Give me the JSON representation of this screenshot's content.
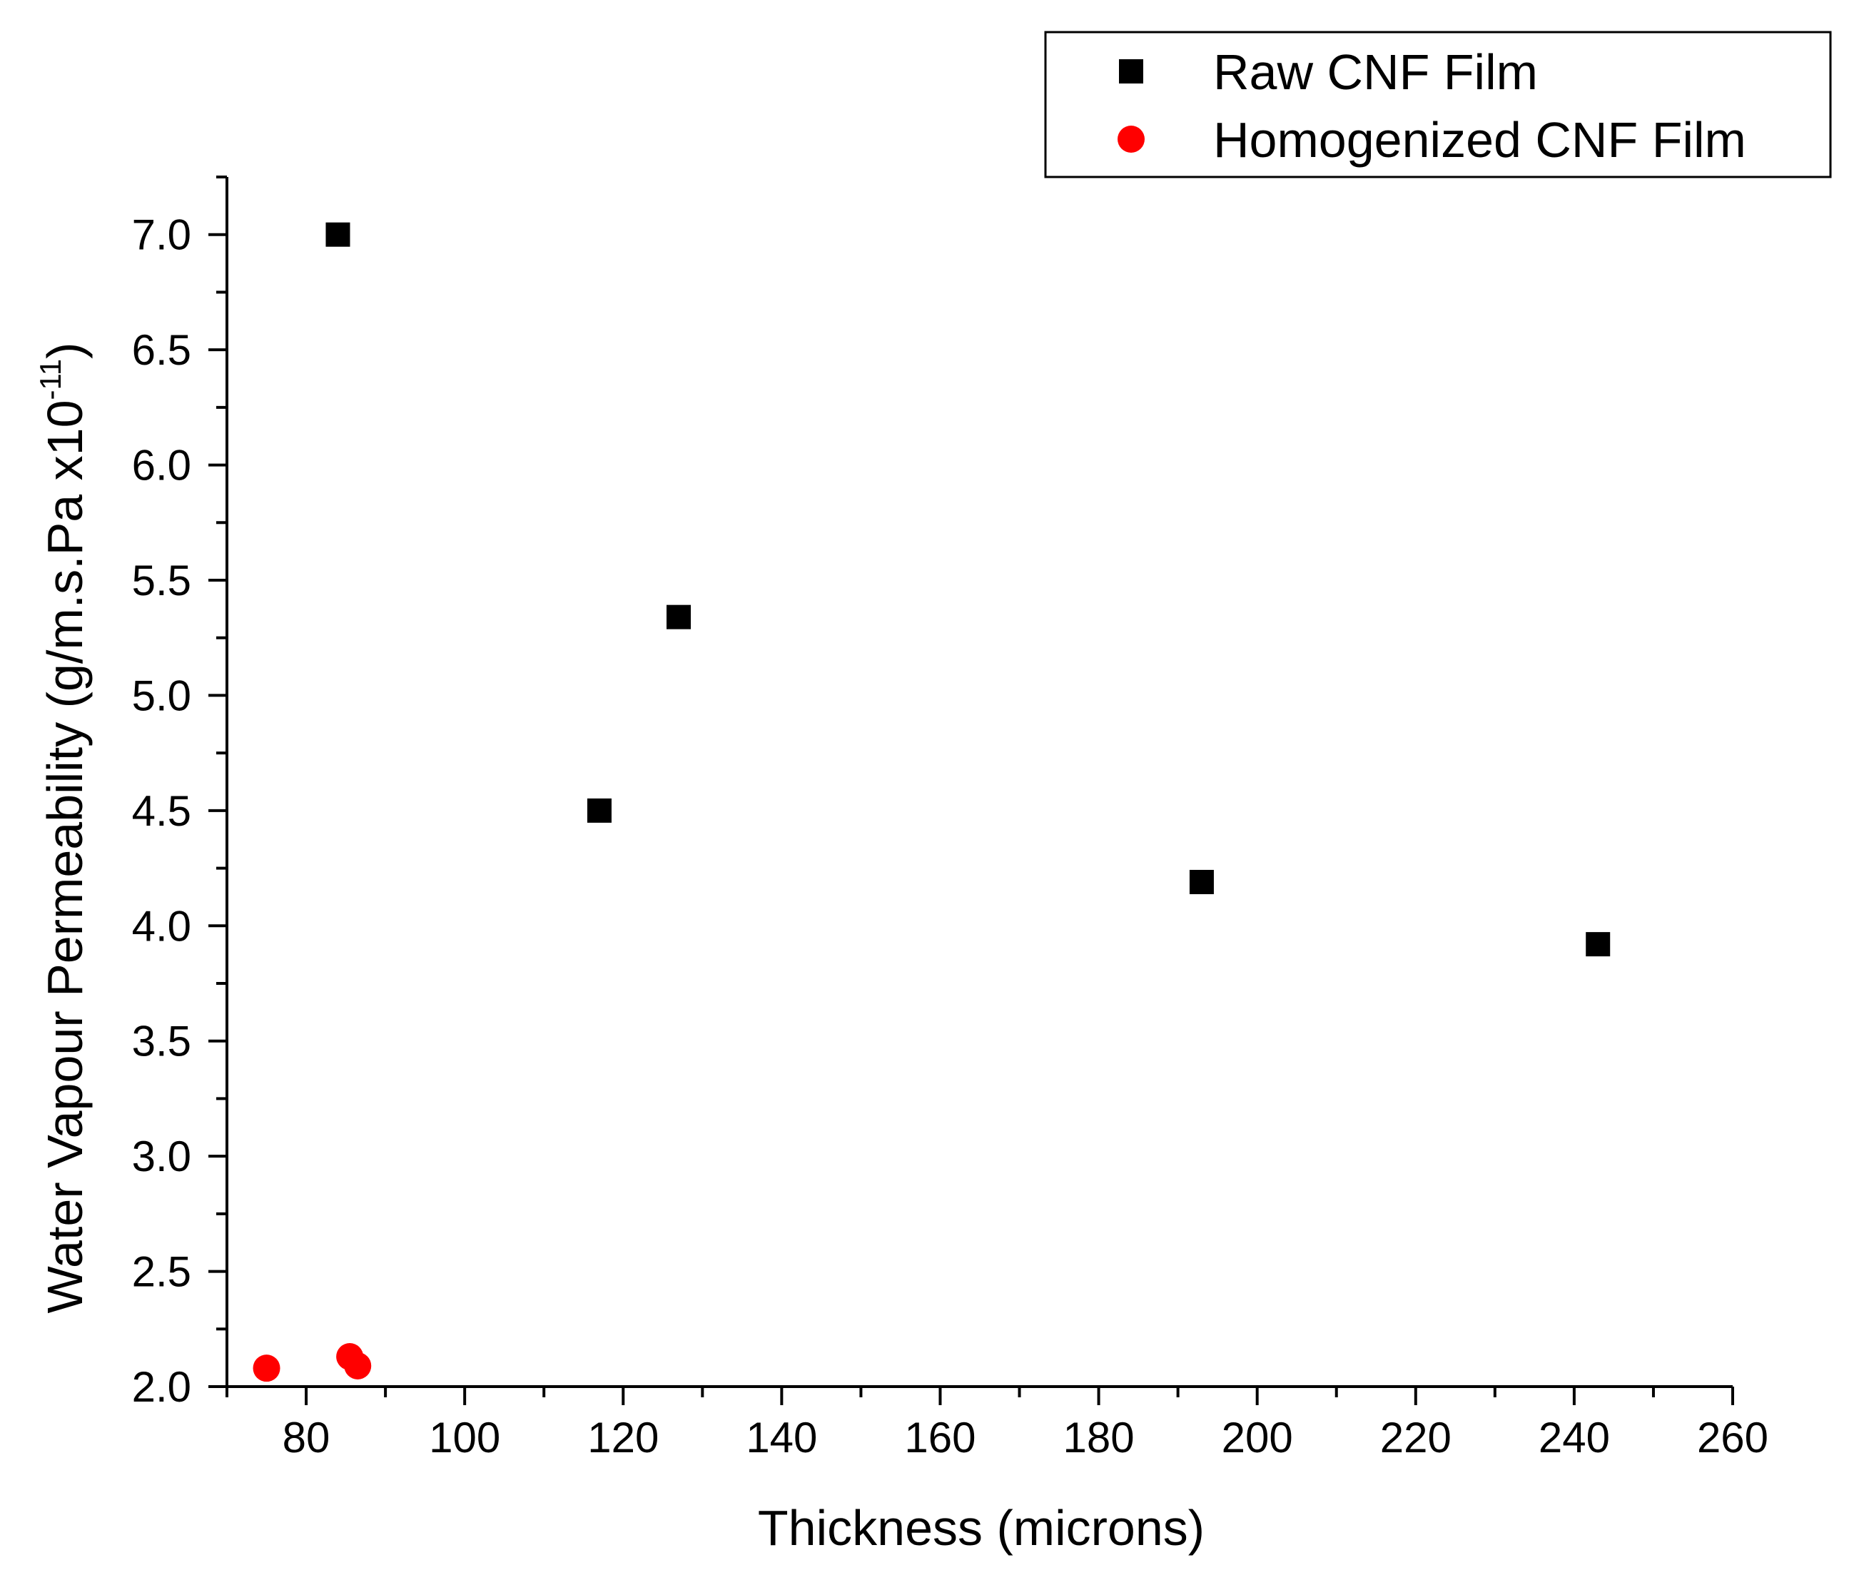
{
  "chart_data": {
    "type": "scatter",
    "xlabel": "Thickness (microns)",
    "ylabel_main": "Water Vapour Permeability (g/m.s.Pa x10",
    "ylabel_sup": "-11",
    "ylabel_close": ")",
    "xlim": [
      70,
      260
    ],
    "ylim": [
      2.0,
      7.25
    ],
    "x_ticks": [
      80,
      100,
      120,
      140,
      160,
      180,
      200,
      220,
      240,
      260
    ],
    "x_tick_labels": [
      "80",
      "100",
      "120",
      "140",
      "160",
      "180",
      "200",
      "220",
      "240",
      "260"
    ],
    "y_ticks": [
      2.0,
      2.5,
      3.0,
      3.5,
      4.0,
      4.5,
      5.0,
      5.5,
      6.0,
      6.5,
      7.0
    ],
    "y_tick_labels": [
      "2.0",
      "2.5",
      "3.0",
      "3.5",
      "4.0",
      "4.5",
      "5.0",
      "5.5",
      "6.0",
      "6.5",
      "7.0"
    ],
    "grid": false,
    "legend_position": "top-right",
    "series": [
      {
        "name": "Raw CNF Film",
        "marker": "square",
        "color": "#000000",
        "x": [
          84,
          117,
          127,
          193,
          243
        ],
        "y": [
          7.0,
          4.5,
          5.34,
          4.19,
          3.92
        ]
      },
      {
        "name": "Homogenized CNF Film",
        "marker": "circle",
        "color": "#ff0000",
        "x": [
          75,
          85.5,
          86.5
        ],
        "y": [
          2.08,
          2.13,
          2.09
        ]
      }
    ]
  }
}
